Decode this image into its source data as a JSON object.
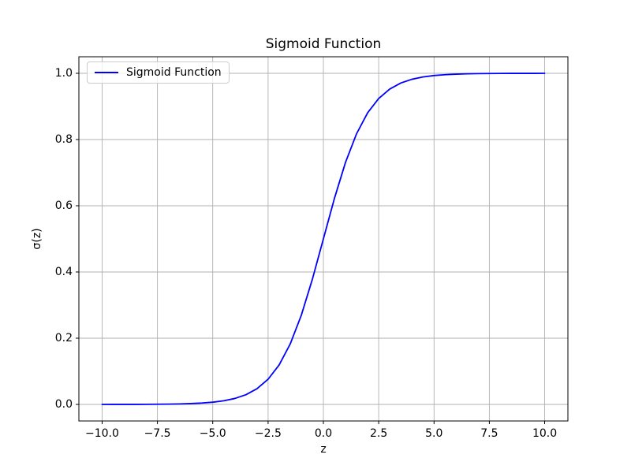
{
  "figure": {
    "title": "Sigmoid Function",
    "background": "#ffffff"
  },
  "chart_data": {
    "type": "line",
    "title": "Sigmoid Function",
    "xlabel": "z",
    "ylabel": "σ(z)",
    "xlim": [
      -11.05,
      11.05
    ],
    "ylim": [
      -0.05,
      1.05
    ],
    "xticks": [
      -10.0,
      -7.5,
      -5.0,
      -2.5,
      0.0,
      2.5,
      5.0,
      7.5,
      10.0
    ],
    "xtick_labels": [
      "−10.0",
      "−7.5",
      "−5.0",
      "−2.5",
      "0.0",
      "2.5",
      "5.0",
      "7.5",
      "10.0"
    ],
    "yticks": [
      0.0,
      0.2,
      0.4,
      0.6,
      0.8,
      1.0
    ],
    "ytick_labels": [
      "0.0",
      "0.2",
      "0.4",
      "0.6",
      "0.8",
      "1.0"
    ],
    "grid": true,
    "grid_color": "#b0b0b0",
    "spine_color": "#000000",
    "legend": {
      "position": "upper left",
      "entries": [
        {
          "label": "Sigmoid Function",
          "color": "#0000ff"
        }
      ]
    },
    "series": [
      {
        "name": "Sigmoid Function",
        "color": "#0000ff",
        "line_width": 1.8,
        "x": [
          -10,
          -9.5,
          -9,
          -8.5,
          -8,
          -7.5,
          -7,
          -6.5,
          -6,
          -5.5,
          -5,
          -4.5,
          -4,
          -3.5,
          -3,
          -2.5,
          -2,
          -1.5,
          -1,
          -0.5,
          0,
          0.5,
          1,
          1.5,
          2,
          2.5,
          3,
          3.5,
          4,
          4.5,
          5,
          5.5,
          6,
          6.5,
          7,
          7.5,
          8,
          8.5,
          9,
          9.5,
          10
        ],
        "y": [
          0.0,
          0.0001,
          0.0001,
          0.0002,
          0.0003,
          0.0006,
          0.0009,
          0.0015,
          0.0025,
          0.0041,
          0.0067,
          0.011,
          0.018,
          0.0293,
          0.0474,
          0.0759,
          0.1192,
          0.1824,
          0.2689,
          0.3775,
          0.5,
          0.6225,
          0.7311,
          0.8176,
          0.8808,
          0.9241,
          0.9526,
          0.9707,
          0.982,
          0.989,
          0.9933,
          0.9959,
          0.9975,
          0.9985,
          0.9991,
          0.9994,
          0.9997,
          0.9998,
          0.9999,
          0.9999,
          1.0
        ]
      }
    ]
  }
}
